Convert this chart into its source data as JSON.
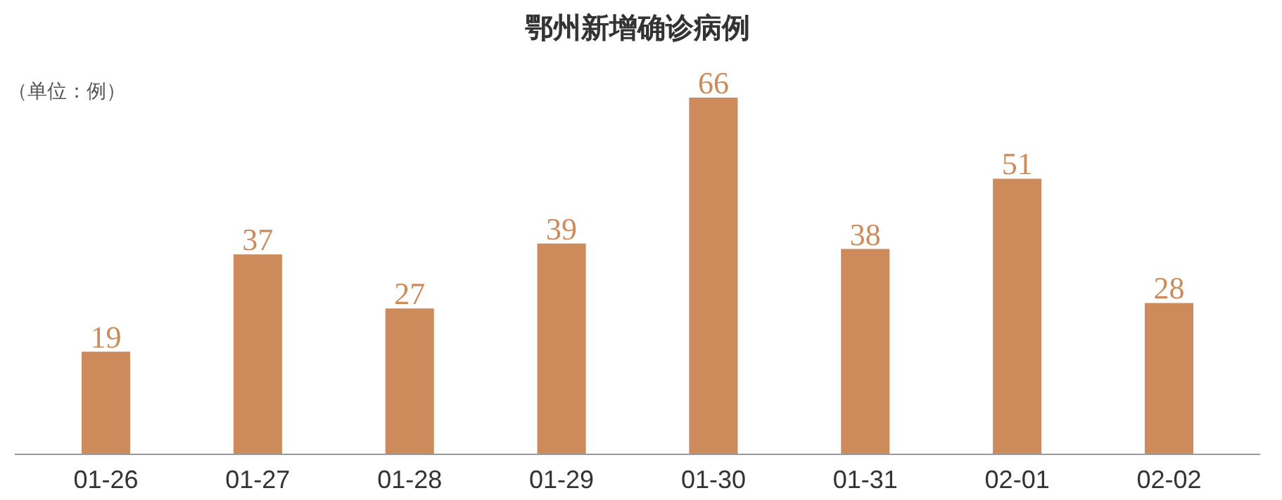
{
  "chart_data": {
    "type": "bar",
    "title": "鄂州新增确诊病例",
    "annotations": [
      "（单位：例）"
    ],
    "categories": [
      "01-26",
      "01-27",
      "01-28",
      "01-29",
      "01-30",
      "01-31",
      "02-01",
      "02-02"
    ],
    "values": [
      19,
      37,
      27,
      39,
      66,
      38,
      51,
      28
    ],
    "color": "#cd8a5a",
    "data_labels": true
  }
}
